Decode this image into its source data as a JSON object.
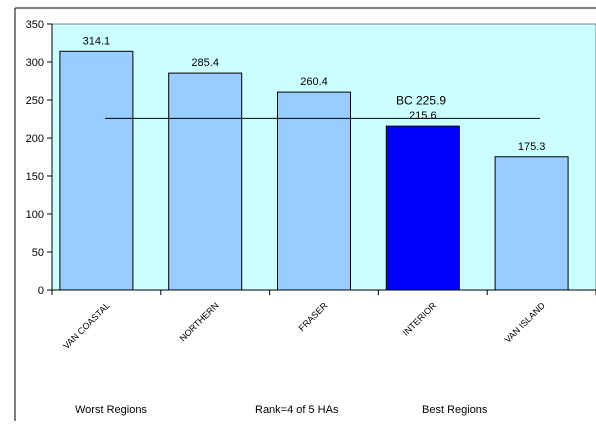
{
  "chart_data": {
    "type": "bar",
    "categories": [
      "VAN COASTAL",
      "NORTHERN",
      "FRASER",
      "INTERIOR",
      "VAN ISLAND"
    ],
    "values": [
      314.1,
      285.4,
      260.4,
      215.6,
      175.3
    ],
    "value_labels": [
      "314.1",
      "285.4",
      "260.4",
      "215.6",
      "175.3"
    ],
    "highlight_category": "INTERIOR",
    "ylim": [
      0,
      350
    ],
    "yticks": [
      0,
      50,
      100,
      150,
      200,
      250,
      300,
      350
    ],
    "reference_line": {
      "value": 225.9,
      "label": "BC 225.9"
    },
    "grid": false,
    "colors": {
      "plot_background": "#ccffff",
      "bar": "#99ccff",
      "bar_highlight": "#0000ff",
      "bar_outline": "#000000"
    }
  },
  "footer": {
    "left": "Worst Regions",
    "center": "Rank=4 of 5 HAs",
    "right": "Best Regions"
  }
}
